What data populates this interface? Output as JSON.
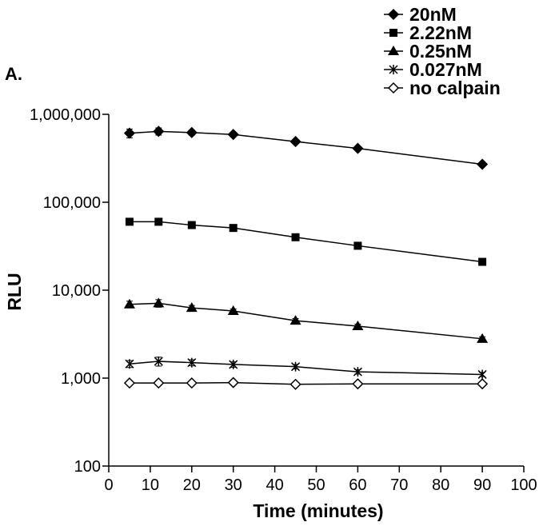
{
  "chart_data": {
    "type": "line",
    "panel_label": "A.",
    "xlabel": "Time (minutes)",
    "ylabel": "RLU",
    "xlim": [
      0,
      100
    ],
    "ylim": [
      100,
      1000000
    ],
    "yscale": "log",
    "grid": false,
    "legend_position": "top-right",
    "x_ticks": [
      "0",
      "10",
      "20",
      "30",
      "40",
      "50",
      "60",
      "70",
      "80",
      "90",
      "100"
    ],
    "y_ticks": [
      "100",
      "1,000",
      "10,000",
      "100,000",
      "1,000,000"
    ],
    "x": [
      5,
      12,
      20,
      30,
      45,
      60,
      90
    ],
    "series": [
      {
        "name": "20nM",
        "marker": "diamond-filled",
        "values": [
          610000,
          640000,
          620000,
          590000,
          490000,
          410000,
          270000
        ],
        "err": [
          70000,
          60000,
          40000,
          30000,
          20000,
          15000,
          10000
        ]
      },
      {
        "name": "2.22nM",
        "marker": "square-filled",
        "values": [
          60000,
          60000,
          55000,
          51000,
          40000,
          32000,
          21000
        ],
        "err": [
          4000,
          4000,
          3000,
          2500,
          2000,
          1500,
          1000
        ]
      },
      {
        "name": "0.25nM",
        "marker": "triangle-filled",
        "values": [
          6900,
          7100,
          6300,
          5800,
          4500,
          3900,
          2800
        ],
        "err": [
          600,
          700,
          400,
          300,
          250,
          200,
          150
        ]
      },
      {
        "name": "0.027nM",
        "marker": "star",
        "values": [
          1450,
          1550,
          1500,
          1430,
          1350,
          1180,
          1100
        ],
        "err": [
          130,
          180,
          120,
          100,
          80,
          70,
          60
        ]
      },
      {
        "name": "no calpain",
        "marker": "diamond-open",
        "values": [
          880,
          880,
          880,
          890,
          850,
          860,
          860
        ],
        "err": [
          30,
          30,
          30,
          30,
          30,
          30,
          30
        ]
      }
    ]
  }
}
